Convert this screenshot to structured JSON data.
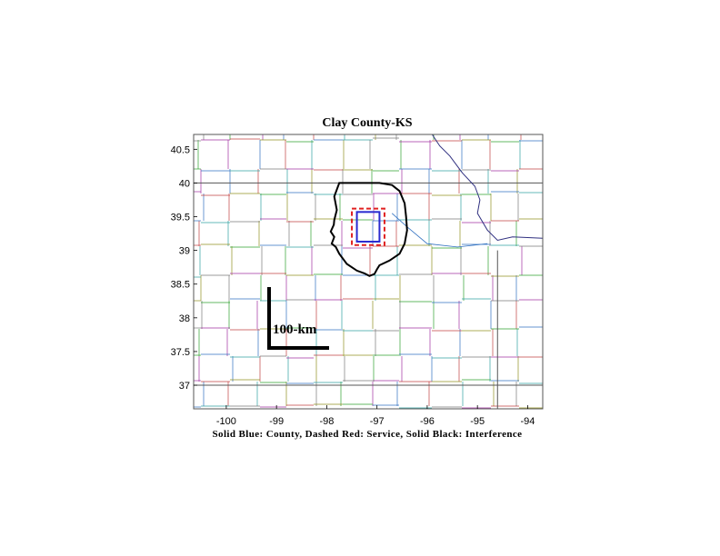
{
  "title": "Clay County-KS",
  "caption": "Solid Blue: County, Dashed Red: Service, Solid Black: Interference",
  "scale_label": "100-km",
  "x_ticks": [
    "-100",
    "-99",
    "-98",
    "-97",
    "-96",
    "-95",
    "-94"
  ],
  "y_ticks": [
    "40.5",
    "40",
    "39.5",
    "39",
    "38.5",
    "38",
    "37.5",
    "37"
  ],
  "colors": {
    "county": "#2a2ad0",
    "service": "#e02020",
    "interference": "#000000",
    "frame": "#555555",
    "boundaries": [
      "#7a7a7a",
      "#2fa02f",
      "#a030a0",
      "#3070c0",
      "#c04040",
      "#30a0a0",
      "#909020"
    ]
  },
  "map": {
    "lon_range": [
      -100.65,
      -93.7
    ],
    "lat_range": [
      36.65,
      40.72
    ],
    "county_box": {
      "lon": [
        -97.4,
        -96.95
      ],
      "lat": [
        39.13,
        39.57
      ]
    },
    "service_box": {
      "lon": [
        -97.5,
        -96.85
      ],
      "lat": [
        39.08,
        39.62
      ]
    }
  }
}
